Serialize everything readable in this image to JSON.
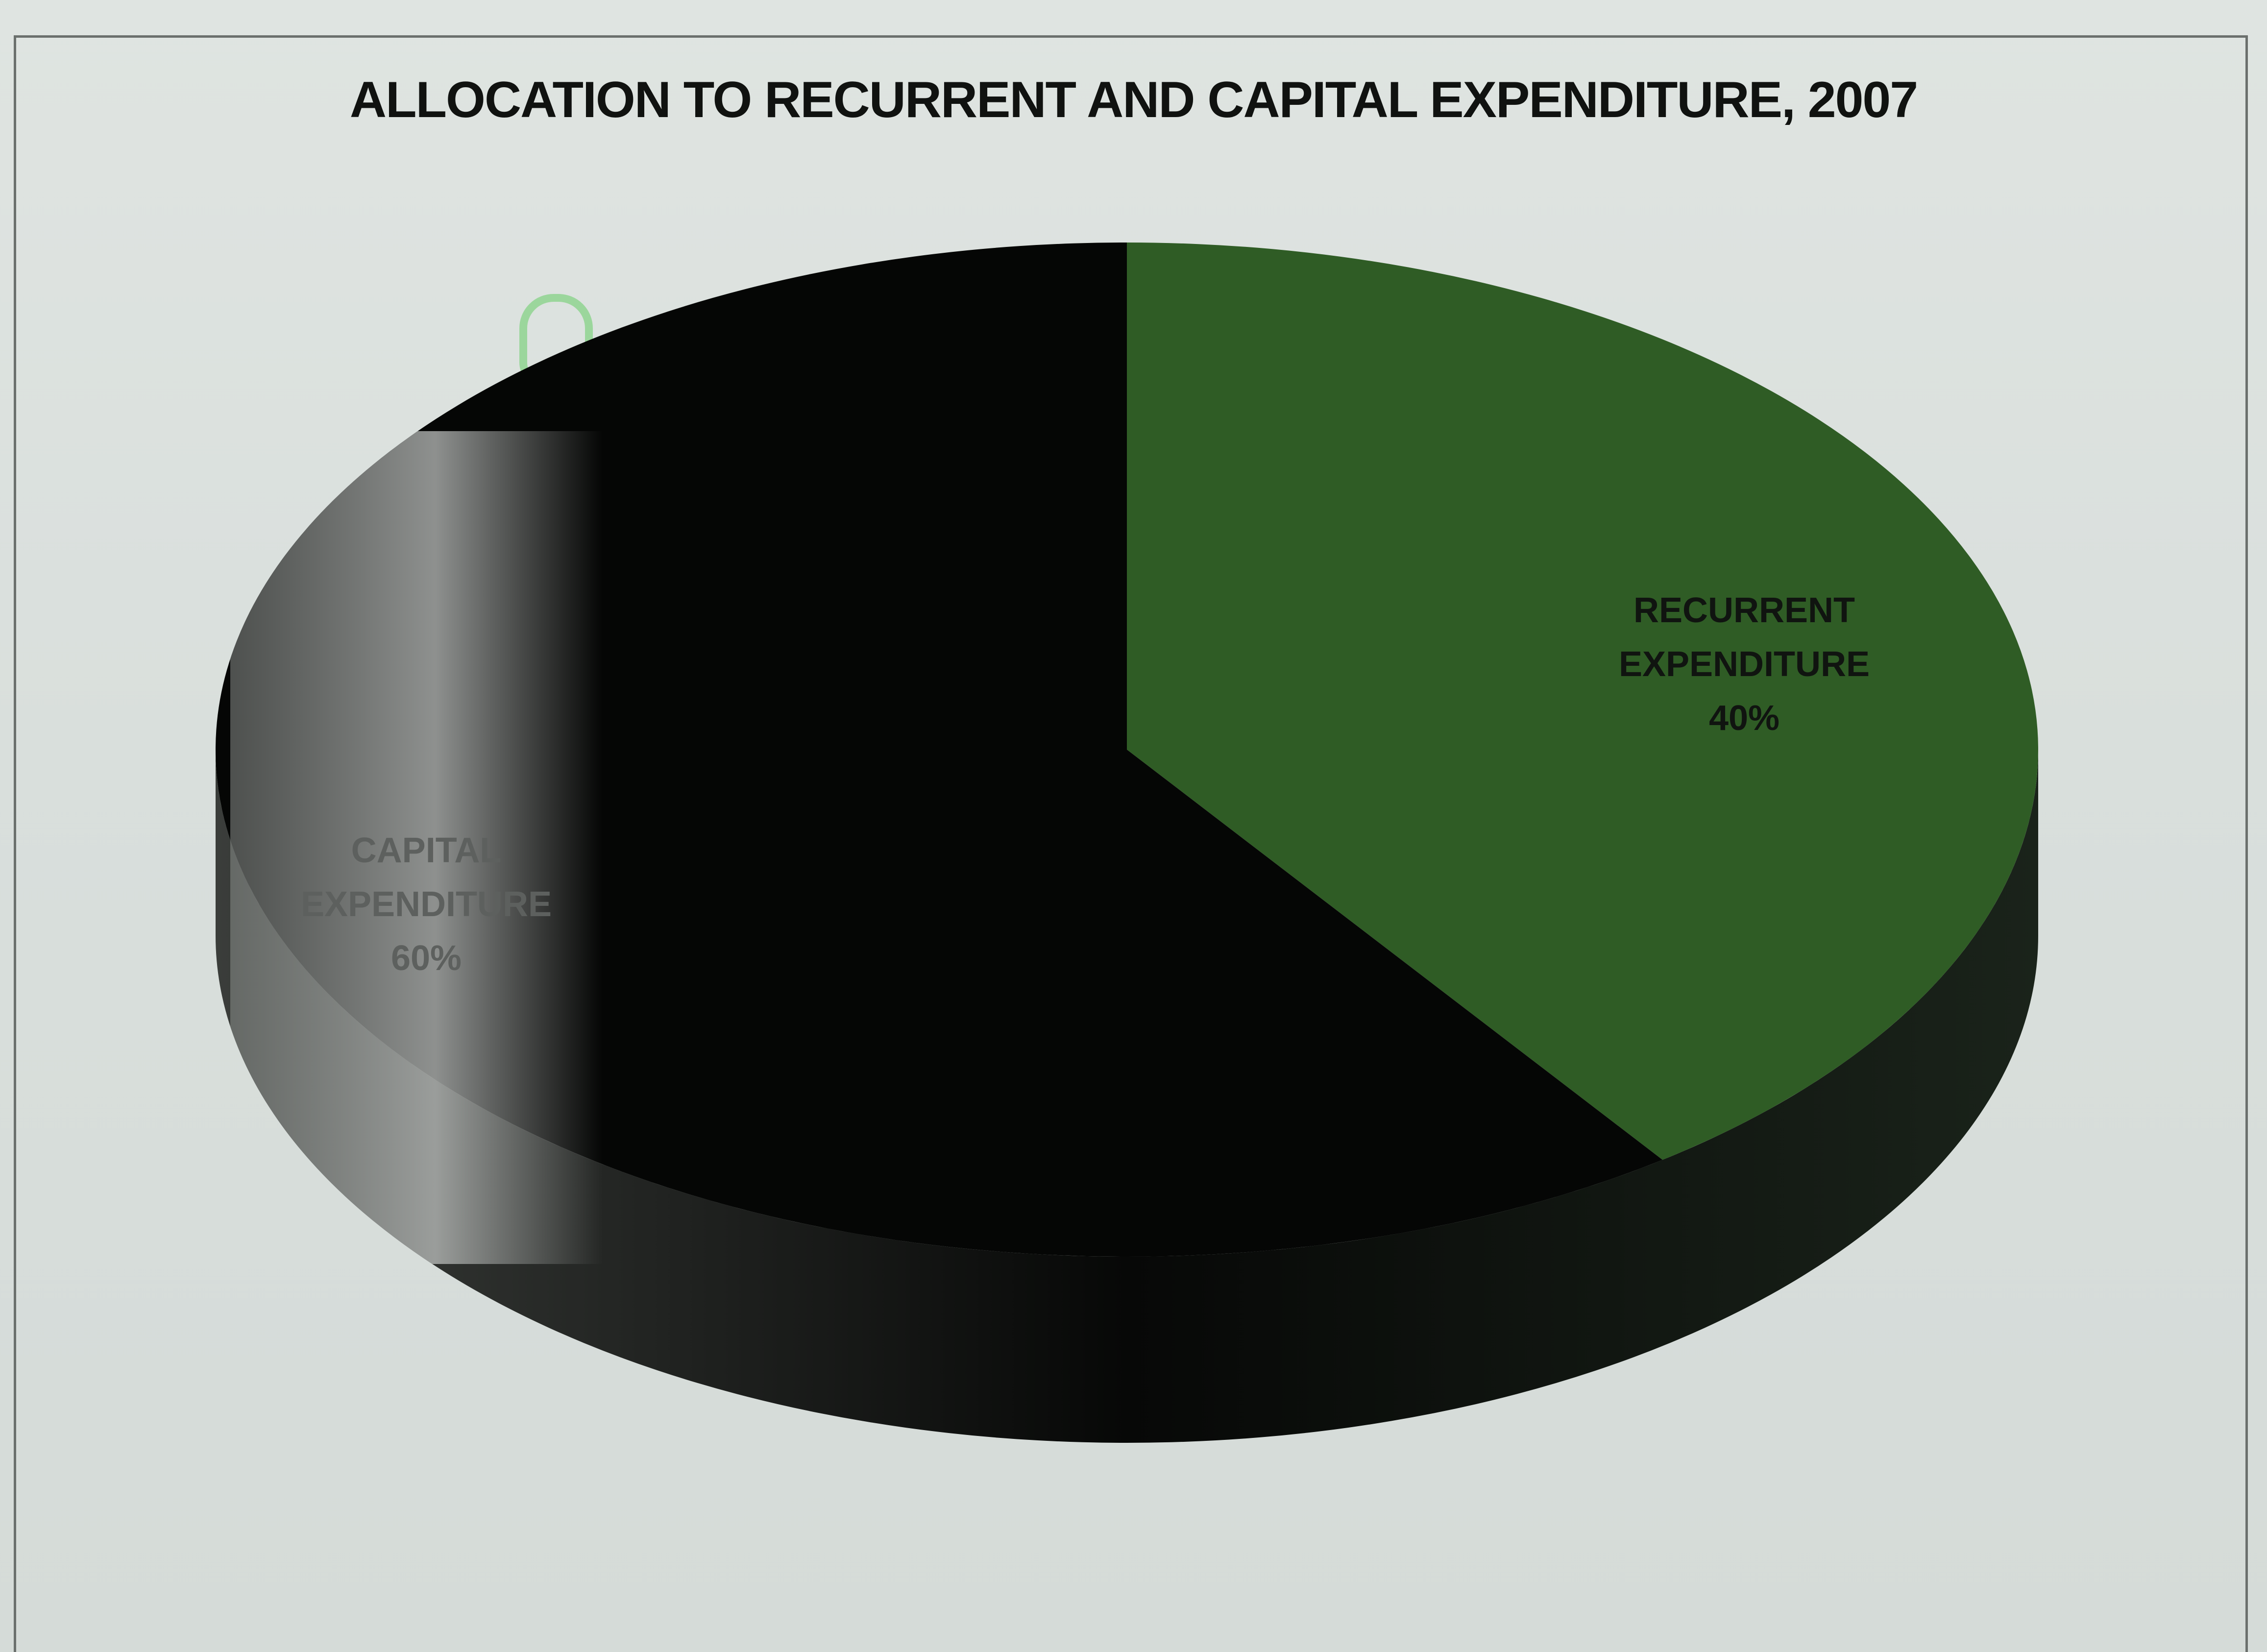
{
  "chart_data": {
    "type": "pie",
    "title": "ALLOCATION TO RECURRENT  AND CAPITAL EXPENDITURE, 2007",
    "slices": [
      {
        "label": "RECURRENT EXPENDITURE",
        "value": 40,
        "value_label": "40%",
        "color": "#2f5c25"
      },
      {
        "label": "CAPITAL EXPENDITURE",
        "value": 60,
        "value_label": "60%",
        "color": "#050605"
      }
    ],
    "three_d": true,
    "legend": "none",
    "data_labels": "inside"
  }
}
